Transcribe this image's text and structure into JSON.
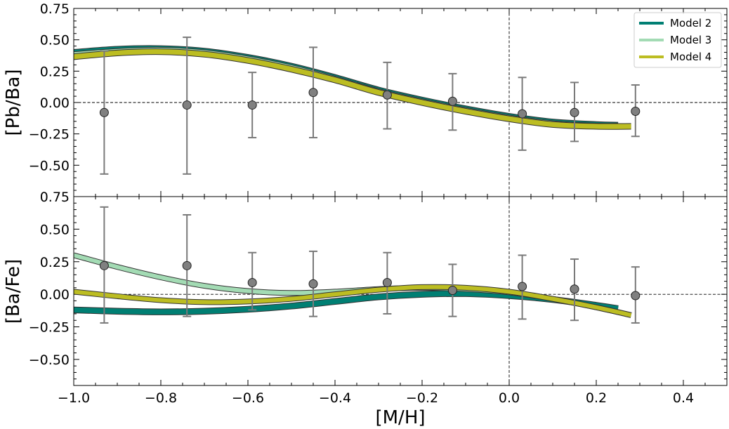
{
  "chart_data": [
    {
      "type": "line",
      "panel": "top",
      "xlabel": "",
      "ylabel": "[Pb/Ba]",
      "xlim": [
        -1.0,
        0.5
      ],
      "ylim": [
        -0.75,
        0.75
      ],
      "yticks": [
        -0.5,
        -0.25,
        0.0,
        0.25,
        0.5,
        0.75
      ],
      "ytick_labels": [
        "−0.50",
        "−0.25",
        "0.00",
        "0.25",
        "0.50",
        "0.75"
      ],
      "hline": 0.0,
      "vline": 0.0,
      "legend": {
        "position": "top-right",
        "entries": [
          {
            "label": "Model 2",
            "color": "#007f73"
          },
          {
            "label": "Model 3",
            "color": "#a3dbb4"
          },
          {
            "label": "Model 4",
            "color": "#bcbd22"
          }
        ]
      },
      "observations": [
        {
          "x": -0.93,
          "y": -0.08,
          "err_low": -0.57,
          "err_high": 0.41
        },
        {
          "x": -0.74,
          "y": -0.02,
          "err_low": -0.57,
          "err_high": 0.52
        },
        {
          "x": -0.59,
          "y": -0.02,
          "err_low": -0.28,
          "err_high": 0.24
        },
        {
          "x": -0.45,
          "y": 0.08,
          "err_low": -0.28,
          "err_high": 0.44
        },
        {
          "x": -0.28,
          "y": 0.06,
          "err_low": -0.21,
          "err_high": 0.32
        },
        {
          "x": -0.13,
          "y": 0.01,
          "err_low": -0.22,
          "err_high": 0.23
        },
        {
          "x": 0.03,
          "y": -0.09,
          "err_low": -0.38,
          "err_high": 0.2
        },
        {
          "x": 0.15,
          "y": -0.08,
          "err_low": -0.31,
          "err_high": 0.16
        },
        {
          "x": 0.29,
          "y": -0.07,
          "err_low": -0.27,
          "err_high": 0.14
        }
      ],
      "series": [
        {
          "name": "Model 2",
          "color": "#007f73",
          "band": 0.02,
          "x": [
            -1.0,
            -0.9,
            -0.8,
            -0.7,
            -0.6,
            -0.5,
            -0.4,
            -0.3,
            -0.2,
            -0.1,
            0.0,
            0.1,
            0.2,
            0.25
          ],
          "y": [
            0.4,
            0.425,
            0.43,
            0.41,
            0.36,
            0.29,
            0.2,
            0.1,
            0.02,
            -0.05,
            -0.11,
            -0.155,
            -0.175,
            -0.18
          ]
        },
        {
          "name": "Model 3",
          "color": "#a3dbb4",
          "band": 0.015,
          "x": [
            -1.0,
            -0.9,
            -0.8,
            -0.7,
            -0.6,
            -0.5,
            -0.4,
            -0.3,
            -0.2,
            -0.1,
            0.0,
            0.1,
            0.2,
            0.25
          ],
          "y": [
            0.385,
            0.41,
            0.42,
            0.4,
            0.35,
            0.28,
            0.19,
            0.09,
            0.01,
            -0.06,
            -0.12,
            -0.165,
            -0.185,
            -0.185
          ]
        },
        {
          "name": "Model 4",
          "color": "#bcbd22",
          "band": 0.02,
          "x": [
            -1.0,
            -0.9,
            -0.8,
            -0.7,
            -0.6,
            -0.5,
            -0.4,
            -0.3,
            -0.2,
            -0.1,
            0.0,
            0.1,
            0.2,
            0.28
          ],
          "y": [
            0.365,
            0.395,
            0.405,
            0.385,
            0.335,
            0.265,
            0.18,
            0.08,
            0.0,
            -0.07,
            -0.13,
            -0.175,
            -0.19,
            -0.19
          ]
        }
      ]
    },
    {
      "type": "line",
      "panel": "bottom",
      "xlabel": "[M/H]",
      "ylabel": "[Ba/Fe]",
      "xlim": [
        -1.0,
        0.5
      ],
      "ylim": [
        -0.7,
        0.75
      ],
      "xticks": [
        -1.0,
        -0.8,
        -0.6,
        -0.4,
        -0.2,
        0.0,
        0.2,
        0.4
      ],
      "xtick_labels": [
        "−1.0",
        "−0.8",
        "−0.6",
        "−0.4",
        "−0.2",
        "0.0",
        "0.2",
        "0.4"
      ],
      "yticks": [
        -0.5,
        -0.25,
        0.0,
        0.25,
        0.5,
        0.75
      ],
      "ytick_labels": [
        "−0.50",
        "−0.25",
        "0.00",
        "0.25",
        "0.50",
        "0.75"
      ],
      "hline": 0.0,
      "vline": 0.0,
      "observations": [
        {
          "x": -0.93,
          "y": 0.22,
          "err_low": -0.22,
          "err_high": 0.67
        },
        {
          "x": -0.74,
          "y": 0.22,
          "err_low": -0.17,
          "err_high": 0.61
        },
        {
          "x": -0.59,
          "y": 0.09,
          "err_low": -0.12,
          "err_high": 0.32
        },
        {
          "x": -0.45,
          "y": 0.08,
          "err_low": -0.17,
          "err_high": 0.33
        },
        {
          "x": -0.28,
          "y": 0.09,
          "err_low": -0.15,
          "err_high": 0.32
        },
        {
          "x": -0.13,
          "y": 0.03,
          "err_low": -0.17,
          "err_high": 0.23
        },
        {
          "x": 0.03,
          "y": 0.06,
          "err_low": -0.19,
          "err_high": 0.3
        },
        {
          "x": 0.15,
          "y": 0.04,
          "err_low": -0.2,
          "err_high": 0.27
        },
        {
          "x": 0.29,
          "y": -0.01,
          "err_low": -0.22,
          "err_high": 0.21
        }
      ],
      "series": [
        {
          "name": "Model 2",
          "color": "#007f73",
          "band": 0.02,
          "x": [
            -1.0,
            -0.9,
            -0.8,
            -0.7,
            -0.6,
            -0.5,
            -0.4,
            -0.3,
            -0.2,
            -0.1,
            0.0,
            0.1,
            0.2,
            0.25
          ],
          "y": [
            -0.12,
            -0.13,
            -0.135,
            -0.13,
            -0.115,
            -0.09,
            -0.055,
            -0.02,
            0.0,
            0.005,
            -0.01,
            -0.04,
            -0.085,
            -0.11
          ]
        },
        {
          "name": "Model 3",
          "color": "#a3dbb4",
          "band": 0.012,
          "x": [
            -1.0,
            -0.9,
            -0.8,
            -0.7,
            -0.6,
            -0.5,
            -0.4,
            -0.3,
            -0.2,
            -0.1,
            0.0,
            0.1,
            0.2,
            0.28
          ],
          "y": [
            0.3,
            0.21,
            0.13,
            0.065,
            0.025,
            0.01,
            0.02,
            0.04,
            0.05,
            0.04,
            0.015,
            -0.035,
            -0.1,
            -0.16
          ]
        },
        {
          "name": "Model 4",
          "color": "#bcbd22",
          "band": 0.015,
          "x": [
            -1.0,
            -0.9,
            -0.8,
            -0.7,
            -0.6,
            -0.5,
            -0.4,
            -0.3,
            -0.2,
            -0.1,
            0.0,
            0.1,
            0.2,
            0.28
          ],
          "y": [
            0.02,
            -0.015,
            -0.045,
            -0.06,
            -0.055,
            -0.035,
            0.0,
            0.035,
            0.055,
            0.05,
            0.02,
            -0.035,
            -0.1,
            -0.16
          ]
        }
      ]
    }
  ]
}
